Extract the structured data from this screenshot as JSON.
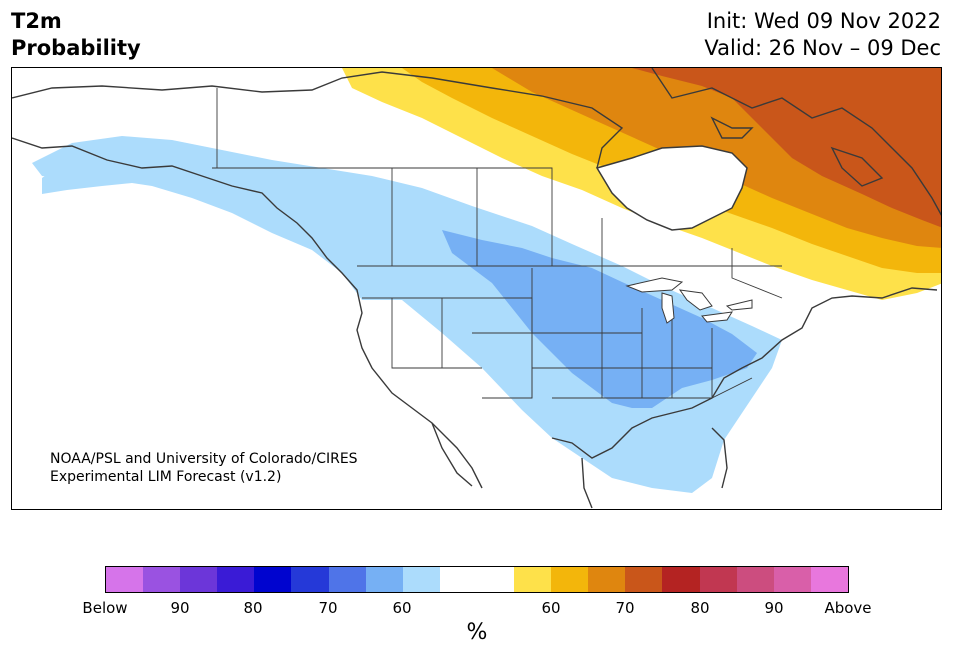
{
  "header": {
    "title_line1": "T2m",
    "title_line2": "Probability",
    "init": "Init: Wed 09 Nov 2022",
    "valid": "Valid: 26 Nov – 09 Dec"
  },
  "map": {
    "credit_line1": "NOAA/PSL and University of Colorado/CIRES",
    "credit_line2": "Experimental LIM Forecast (v1.2)",
    "colors": {
      "land": "#ffffff",
      "below_60": "#acdcfc",
      "below_70": "#76b0f4",
      "above_60": "#fee14a",
      "above_70": "#f3b60b",
      "above_80": "#df860f",
      "above_90": "#c9561a",
      "outline": "#3a3a3a"
    }
  },
  "colorbar": {
    "unit": "%",
    "colors": [
      "#d674ea",
      "#9a52e1",
      "#6c36d9",
      "#3a1bd6",
      "#0004cf",
      "#2539d8",
      "#4f74e8",
      "#76b0f4",
      "#acdcfc",
      "#ffffff",
      "#ffffff",
      "#fee14a",
      "#f3b60b",
      "#df860f",
      "#c9561a",
      "#b42322",
      "#c13751",
      "#cc4d7f",
      "#d95fa9",
      "#e877dd"
    ],
    "ticks": [
      {
        "label": "Below"
      },
      {
        "label": "90"
      },
      {
        "label": "80"
      },
      {
        "label": "70"
      },
      {
        "label": "60"
      },
      {
        "label": "60"
      },
      {
        "label": "70"
      },
      {
        "label": "80"
      },
      {
        "label": "90"
      },
      {
        "label": "Above"
      }
    ]
  }
}
